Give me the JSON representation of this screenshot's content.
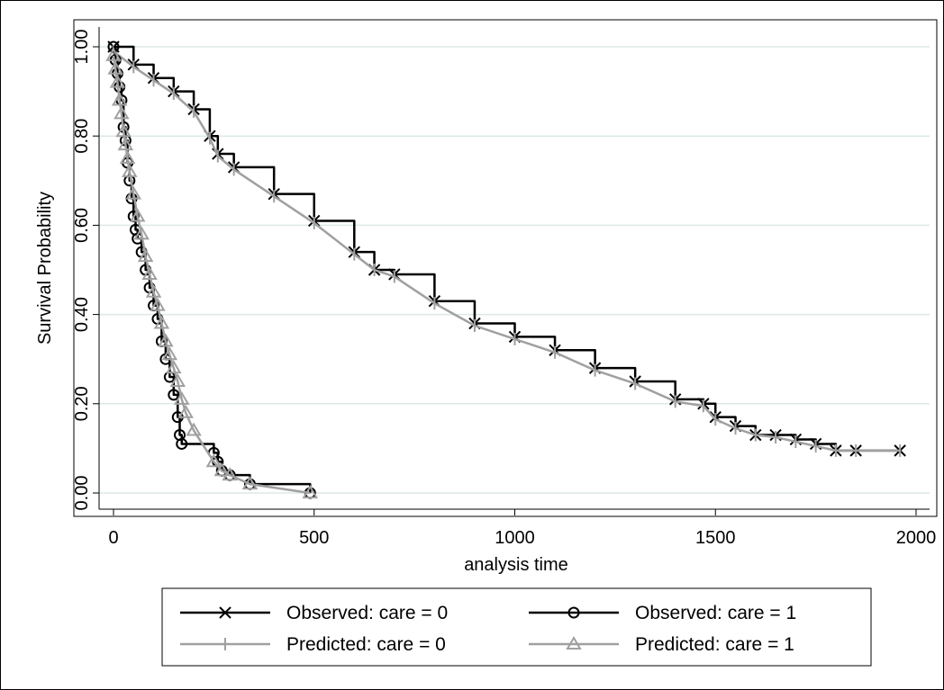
{
  "chart_data": {
    "type": "line",
    "title": "",
    "xlabel": "analysis time",
    "ylabel": "Survival Probability",
    "xlim": [
      0,
      2000
    ],
    "ylim": [
      0,
      1
    ],
    "grid": "horizontal",
    "legend_position": "bottom",
    "x_ticks": [
      {
        "value": 0,
        "label": "0"
      },
      {
        "value": 500,
        "label": "500"
      },
      {
        "value": 1000,
        "label": "1000"
      },
      {
        "value": 1500,
        "label": "1500"
      },
      {
        "value": 2000,
        "label": "2000"
      }
    ],
    "y_ticks": [
      {
        "value": 0,
        "label": "0.00"
      },
      {
        "value": 0.2,
        "label": "0.20"
      },
      {
        "value": 0.4,
        "label": "0.40"
      },
      {
        "value": 0.6,
        "label": "0.60"
      },
      {
        "value": 0.8,
        "label": "0.80"
      },
      {
        "value": 1,
        "label": "1.00"
      }
    ],
    "series": [
      {
        "name": "Observed: care = 0",
        "style": "step",
        "marker": "x",
        "color": "#000000",
        "x": [
          0,
          50,
          100,
          150,
          200,
          240,
          260,
          300,
          400,
          500,
          600,
          650,
          700,
          800,
          900,
          1000,
          1100,
          1200,
          1300,
          1400,
          1470,
          1500,
          1550,
          1600,
          1650,
          1700,
          1750,
          1800,
          1850,
          1960
        ],
        "y": [
          1.0,
          0.96,
          0.93,
          0.9,
          0.86,
          0.8,
          0.76,
          0.73,
          0.67,
          0.61,
          0.54,
          0.5,
          0.49,
          0.43,
          0.38,
          0.35,
          0.32,
          0.28,
          0.25,
          0.21,
          0.2,
          0.17,
          0.15,
          0.13,
          0.13,
          0.12,
          0.11,
          0.095,
          0.095,
          0.095
        ]
      },
      {
        "name": "Observed: care = 1",
        "style": "step",
        "marker": "o",
        "color": "#000000",
        "x": [
          0,
          5,
          10,
          15,
          20,
          25,
          30,
          35,
          40,
          45,
          50,
          55,
          60,
          70,
          80,
          90,
          100,
          110,
          120,
          130,
          140,
          150,
          160,
          165,
          170,
          250,
          260,
          270,
          290,
          340,
          490
        ],
        "y": [
          1.0,
          0.97,
          0.94,
          0.91,
          0.88,
          0.82,
          0.79,
          0.74,
          0.7,
          0.66,
          0.62,
          0.59,
          0.57,
          0.54,
          0.5,
          0.46,
          0.42,
          0.39,
          0.34,
          0.3,
          0.26,
          0.22,
          0.17,
          0.13,
          0.11,
          0.09,
          0.07,
          0.05,
          0.04,
          0.02,
          0.0
        ]
      },
      {
        "name": "Predicted: care = 0",
        "style": "line",
        "marker": "+",
        "color": "#a0a0a0",
        "x": [
          0,
          50,
          100,
          150,
          200,
          240,
          260,
          300,
          400,
          500,
          600,
          650,
          700,
          800,
          900,
          1000,
          1100,
          1200,
          1300,
          1400,
          1470,
          1500,
          1550,
          1600,
          1650,
          1700,
          1750,
          1800,
          1850,
          1960
        ],
        "y": [
          0.99,
          0.955,
          0.925,
          0.895,
          0.855,
          0.795,
          0.755,
          0.725,
          0.665,
          0.605,
          0.535,
          0.5,
          0.485,
          0.425,
          0.375,
          0.345,
          0.315,
          0.275,
          0.245,
          0.205,
          0.195,
          0.165,
          0.145,
          0.13,
          0.125,
          0.115,
          0.105,
          0.095,
          0.095,
          0.095
        ]
      },
      {
        "name": "Predicted: care = 1",
        "style": "line",
        "marker": "triangle",
        "color": "#a0a0a0",
        "x": [
          0,
          5,
          10,
          15,
          20,
          25,
          30,
          35,
          40,
          50,
          60,
          70,
          80,
          90,
          100,
          110,
          120,
          130,
          140,
          150,
          160,
          170,
          180,
          200,
          250,
          270,
          290,
          340,
          490
        ],
        "y": [
          0.98,
          0.95,
          0.92,
          0.88,
          0.85,
          0.81,
          0.78,
          0.75,
          0.72,
          0.67,
          0.62,
          0.58,
          0.53,
          0.49,
          0.45,
          0.42,
          0.38,
          0.34,
          0.31,
          0.28,
          0.25,
          0.21,
          0.18,
          0.14,
          0.07,
          0.05,
          0.04,
          0.02,
          0.0
        ]
      }
    ]
  }
}
